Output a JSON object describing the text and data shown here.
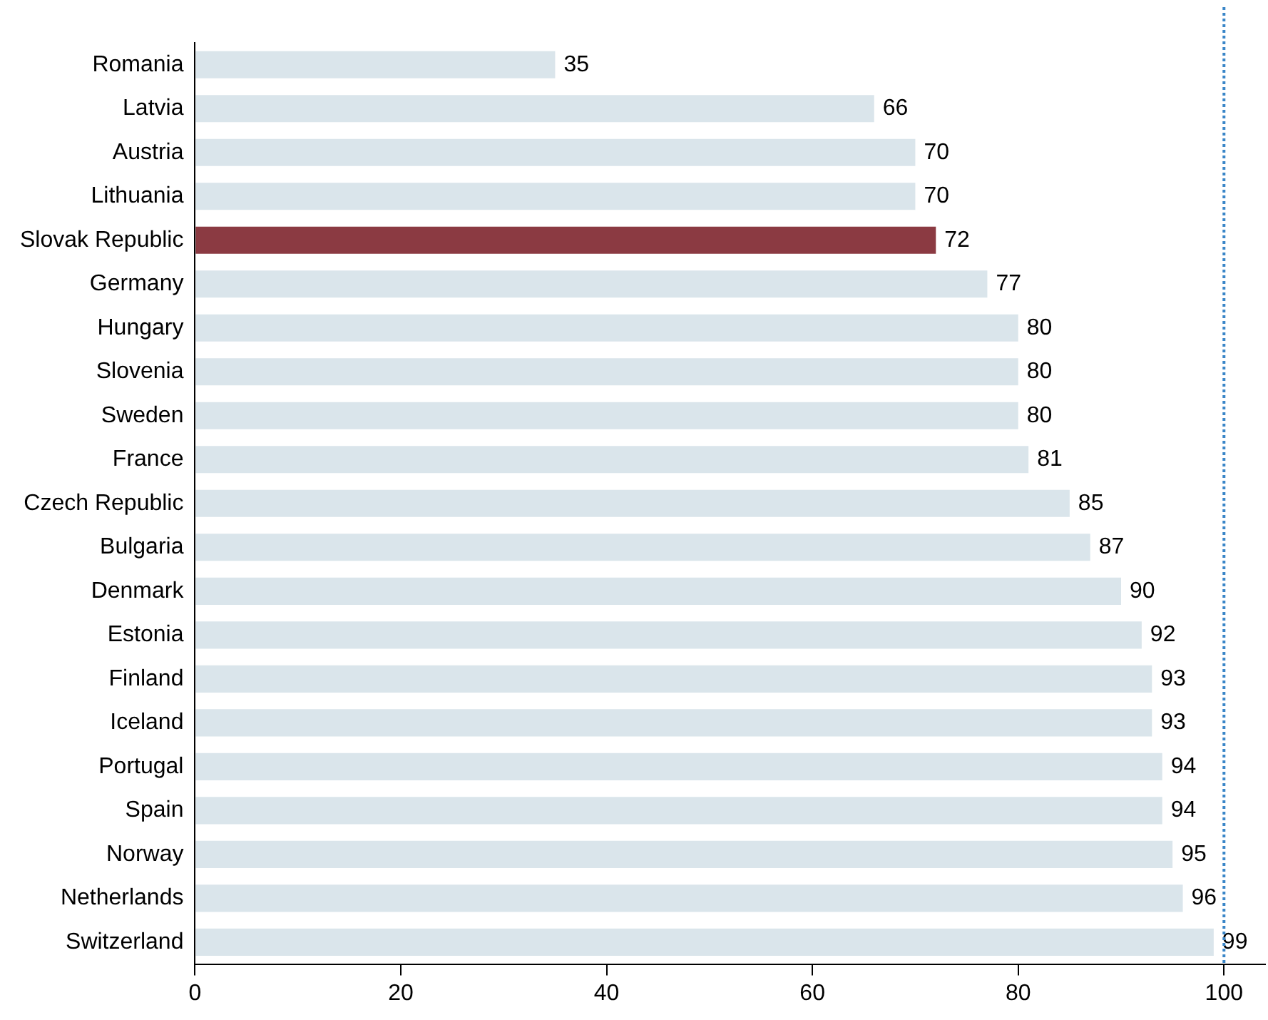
{
  "chart_data": {
    "type": "bar",
    "orientation": "horizontal",
    "categories": [
      "Romania",
      "Latvia",
      "Austria",
      "Lithuania",
      "Slovak Republic",
      "Germany",
      "Hungary",
      "Slovenia",
      "Sweden",
      "France",
      "Czech Republic",
      "Bulgaria",
      "Denmark",
      "Estonia",
      "Finland",
      "Iceland",
      "Portugal",
      "Spain",
      "Norway",
      "Netherlands",
      "Switzerland"
    ],
    "values": [
      35,
      66,
      70,
      70,
      72,
      77,
      80,
      80,
      80,
      81,
      85,
      87,
      90,
      92,
      93,
      93,
      94,
      94,
      95,
      96,
      99
    ],
    "colors": [
      "#dae5eb",
      "#dae5eb",
      "#dae5eb",
      "#dae5eb",
      "#8b3a42",
      "#dae5eb",
      "#dae5eb",
      "#dae5eb",
      "#dae5eb",
      "#dae5eb",
      "#dae5eb",
      "#dae5eb",
      "#dae5eb",
      "#dae5eb",
      "#dae5eb",
      "#dae5eb",
      "#dae5eb",
      "#dae5eb",
      "#dae5eb",
      "#dae5eb",
      "#dae5eb"
    ],
    "xlim": [
      0,
      104
    ],
    "xticks": [
      0,
      20,
      40,
      60,
      80,
      100
    ],
    "ref_lines": [
      {
        "axis": "x",
        "value": 100,
        "color": "#3a86c8",
        "line_style": "dotted"
      }
    ],
    "data_labels": true,
    "grid": false
  }
}
